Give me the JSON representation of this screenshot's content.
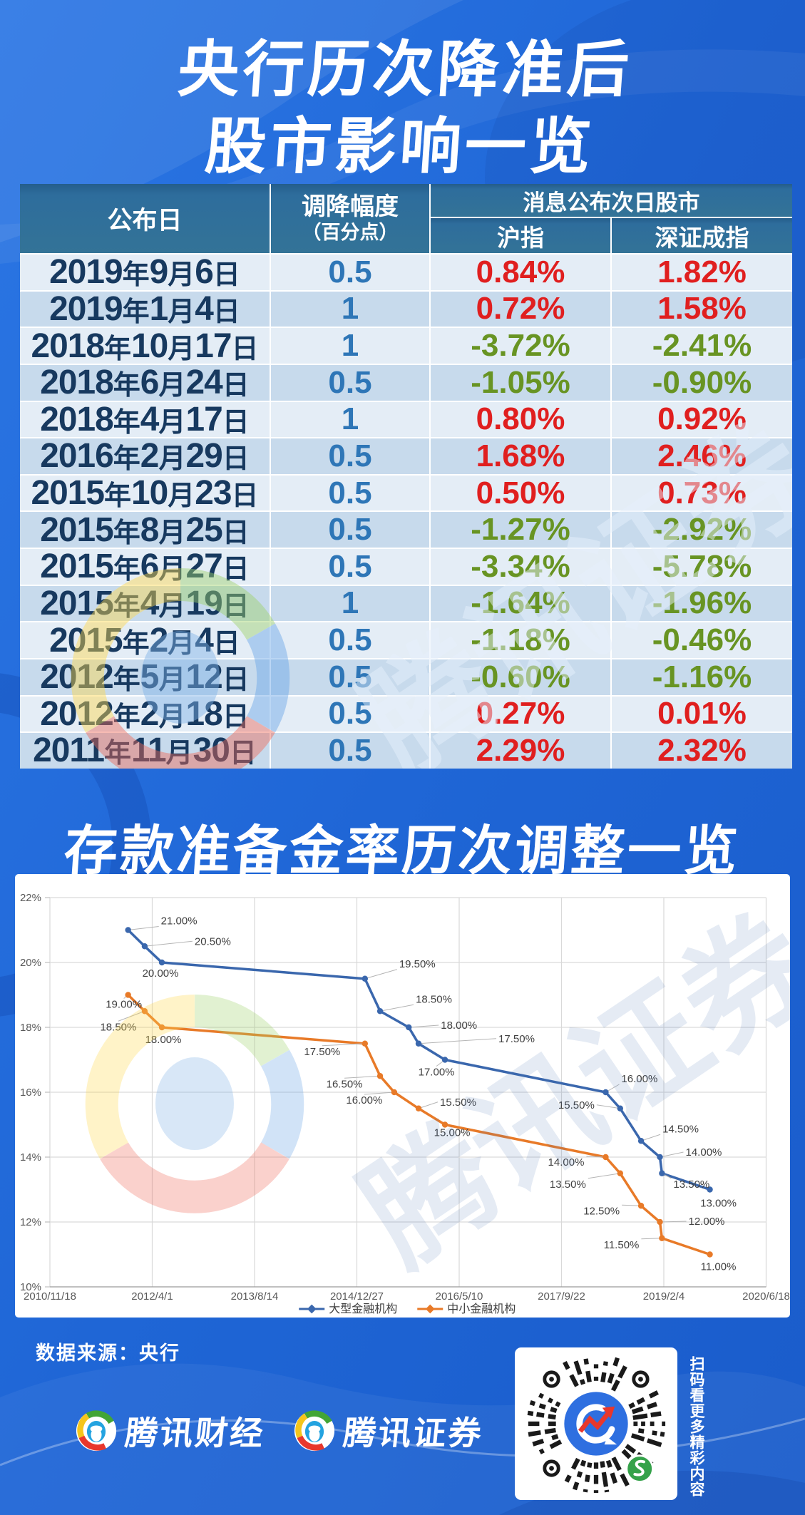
{
  "header": {
    "title_line1": "央行历次降准后",
    "title_line2": "股市影响一览"
  },
  "table": {
    "col_date": "公布日",
    "col_cut": "调降幅度",
    "col_cut_sub": "（百分点）",
    "col_group": "消息公布次日股市",
    "col_sh": "沪指",
    "col_sz": "深证成指",
    "rows": [
      {
        "date": "2019年9月6日",
        "cut": "0.5",
        "sh": "0.84%",
        "sz": "1.82%"
      },
      {
        "date": "2019年1月4日",
        "cut": "1",
        "sh": "0.72%",
        "sz": "1.58%"
      },
      {
        "date": "2018年10月17日",
        "cut": "1",
        "sh": "-3.72%",
        "sz": "-2.41%"
      },
      {
        "date": "2018年6月24日",
        "cut": "0.5",
        "sh": "-1.05%",
        "sz": "-0.90%"
      },
      {
        "date": "2018年4月17日",
        "cut": "1",
        "sh": "0.80%",
        "sz": "0.92%"
      },
      {
        "date": "2016年2月29日",
        "cut": "0.5",
        "sh": "1.68%",
        "sz": "2.46%"
      },
      {
        "date": "2015年10月23日",
        "cut": "0.5",
        "sh": "0.50%",
        "sz": "0.73%"
      },
      {
        "date": "2015年8月25日",
        "cut": "0.5",
        "sh": "-1.27%",
        "sz": "-2.92%"
      },
      {
        "date": "2015年6月27日",
        "cut": "0.5",
        "sh": "-3.34%",
        "sz": "-5.78%"
      },
      {
        "date": "2015年4月19日",
        "cut": "1",
        "sh": "-1.64%",
        "sz": "-1.96%"
      },
      {
        "date": "2015年2月4日",
        "cut": "0.5",
        "sh": "-1.18%",
        "sz": "-0.46%"
      },
      {
        "date": "2012年5月12日",
        "cut": "0.5",
        "sh": "-0.60%",
        "sz": "-1.16%"
      },
      {
        "date": "2012年2月18日",
        "cut": "0.5",
        "sh": "0.27%",
        "sz": "0.01%"
      },
      {
        "date": "2011年11月30日",
        "cut": "0.5",
        "sh": "2.29%",
        "sz": "2.32%"
      }
    ]
  },
  "section2": {
    "title": "存款准备金率历次调整一览",
    "source": "数据来源：央行"
  },
  "watermark": {
    "text": "腾讯证券"
  },
  "footer": {
    "brand1": "腾讯财经",
    "brand2": "腾讯证券",
    "scan_text": "扫码看更多精彩内容"
  },
  "chart_data": {
    "type": "line",
    "title": "存款准备金率历次调整一览",
    "x_ticks": [
      "2010/11/18",
      "2012/4/1",
      "2013/8/14",
      "2014/12/27",
      "2016/5/10",
      "2017/9/22",
      "2019/2/4",
      "2020/6/18"
    ],
    "y_ticks": [
      "22%",
      "20%",
      "18%",
      "16%",
      "14%",
      "12%",
      "10%"
    ],
    "ylim": [
      10,
      22
    ],
    "x_range_days": [
      0,
      3499
    ],
    "grid": true,
    "legend_position": "bottom",
    "series": [
      {
        "name": "大型金融机构",
        "color": "#3a67ad",
        "points": [
          {
            "d": 382,
            "v": 21,
            "t": "21.00%",
            "dx": 46,
            "dy": -8,
            "a": "s",
            "ld": 1
          },
          {
            "d": 463,
            "v": 20.5,
            "t": "20.50%",
            "dx": 70,
            "dy": -2,
            "a": "s",
            "ld": 1
          },
          {
            "d": 547,
            "v": 20,
            "t": "20.00%",
            "dx": -2,
            "dy": 20,
            "a": "m",
            "ld": 0
          },
          {
            "d": 1539,
            "v": 19.5,
            "t": "19.50%",
            "dx": 48,
            "dy": -16,
            "a": "s",
            "ld": 1
          },
          {
            "d": 1613,
            "v": 18.5,
            "t": "18.50%",
            "dx": 50,
            "dy": -12,
            "a": "s",
            "ld": 1
          },
          {
            "d": 1753,
            "v": 18,
            "t": "18.00%",
            "dx": 45,
            "dy": 2,
            "a": "s",
            "ld": 1
          },
          {
            "d": 1801,
            "v": 17.5,
            "t": "17.50%",
            "dx": 112,
            "dy": -2,
            "a": "s",
            "ld": 1
          },
          {
            "d": 1930,
            "v": 17,
            "t": "17.00%",
            "dx": -12,
            "dy": 22,
            "a": "m",
            "ld": 1
          },
          {
            "d": 2715,
            "v": 16,
            "t": "16.00%",
            "dx": 22,
            "dy": -14,
            "a": "s",
            "ld": 1
          },
          {
            "d": 2786,
            "v": 15.5,
            "t": "15.50%",
            "dx": -36,
            "dy": 0,
            "a": "e",
            "ld": 1
          },
          {
            "d": 2888,
            "v": 14.5,
            "t": "14.50%",
            "dx": 30,
            "dy": -12,
            "a": "s",
            "ld": 1
          },
          {
            "d": 2980,
            "v": 14,
            "t": "14.00%",
            "dx": 36,
            "dy": -2,
            "a": "s",
            "ld": 1
          },
          {
            "d": 2990,
            "v": 13.5,
            "t": "13.50%",
            "dx": 16,
            "dy": 20,
            "a": "s",
            "ld": 1
          },
          {
            "d": 3224,
            "v": 13,
            "t": "13.00%",
            "dx": 12,
            "dy": 24,
            "a": "m",
            "ld": 0
          }
        ]
      },
      {
        "name": "中小金融机构",
        "color": "#e87a28",
        "points": [
          {
            "d": 382,
            "v": 19,
            "t": "19.00%",
            "dx": -6,
            "dy": 18,
            "a": "m",
            "ld": 1
          },
          {
            "d": 463,
            "v": 18.5,
            "t": "18.50%",
            "dx": -37,
            "dy": 27,
            "a": "m",
            "ld": 1
          },
          {
            "d": 547,
            "v": 18,
            "t": "18.00%",
            "dx": 2,
            "dy": 22,
            "a": "m",
            "ld": 0
          },
          {
            "d": 1539,
            "v": 17.5,
            "t": "17.50%",
            "dx": -60,
            "dy": 16,
            "a": "m",
            "ld": 1
          },
          {
            "d": 1613,
            "v": 16.5,
            "t": "16.50%",
            "dx": -50,
            "dy": 16,
            "a": "m",
            "ld": 1
          },
          {
            "d": 1682,
            "v": 16,
            "t": "16.00%",
            "dx": -42,
            "dy": 16,
            "a": "m",
            "ld": 1
          },
          {
            "d": 1801,
            "v": 15.5,
            "t": "15.50%",
            "dx": 30,
            "dy": -4,
            "a": "s",
            "ld": 1
          },
          {
            "d": 1930,
            "v": 15,
            "t": "15.00%",
            "dx": 10,
            "dy": 16,
            "a": "m",
            "ld": 0
          },
          {
            "d": 2715,
            "v": 14,
            "t": "14.00%",
            "dx": -30,
            "dy": 12,
            "a": "e",
            "ld": 1
          },
          {
            "d": 2786,
            "v": 13.5,
            "t": "13.50%",
            "dx": -48,
            "dy": 20,
            "a": "e",
            "ld": 1
          },
          {
            "d": 2888,
            "v": 12.5,
            "t": "12.50%",
            "dx": -30,
            "dy": 12,
            "a": "e",
            "ld": 1
          },
          {
            "d": 2980,
            "v": 12,
            "t": "12.00%",
            "dx": 40,
            "dy": 4,
            "a": "s",
            "ld": 1
          },
          {
            "d": 2990,
            "v": 11.5,
            "t": "11.50%",
            "dx": -32,
            "dy": 14,
            "a": "e",
            "ld": 1
          },
          {
            "d": 3224,
            "v": 11,
            "t": "11.00%",
            "dx": 12,
            "dy": 22,
            "a": "m",
            "ld": 0
          }
        ]
      }
    ]
  }
}
